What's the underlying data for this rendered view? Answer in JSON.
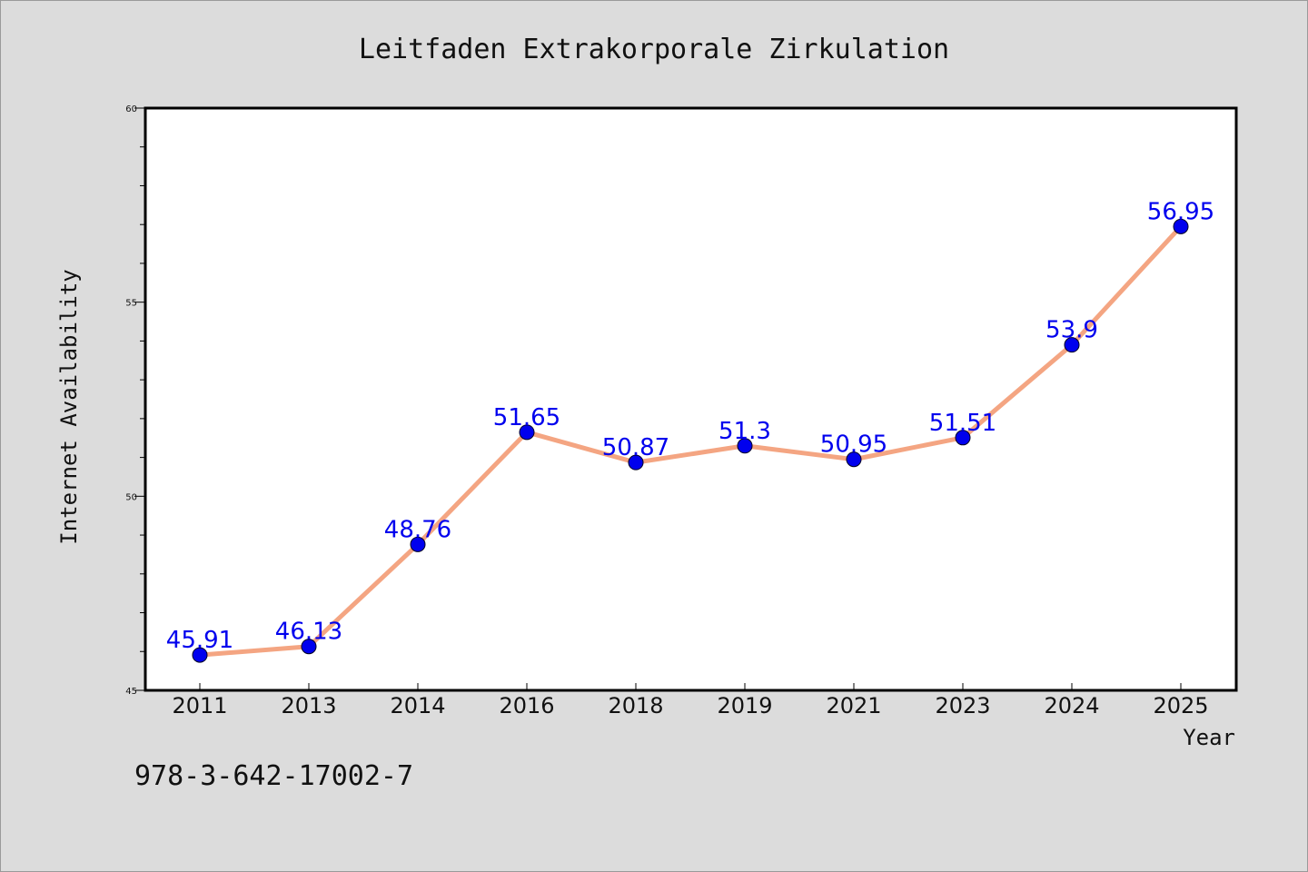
{
  "chart_data": {
    "type": "line",
    "title": "Leitfaden Extrakorporale Zirkulation",
    "xlabel": "Year",
    "ylabel": "Internet Availability",
    "categories": [
      "2011",
      "2013",
      "2014",
      "2016",
      "2018",
      "2019",
      "2021",
      "2023",
      "2024",
      "2025"
    ],
    "series": [
      {
        "values": [
          45.91,
          46.13,
          48.76,
          51.65,
          50.87,
          51.3,
          50.95,
          51.51,
          53.9,
          56.95
        ],
        "labels": [
          "45.91",
          "46.13",
          "48.76",
          "51.65",
          "50.87",
          "51.3",
          "50.95",
          "51.51",
          "53.9",
          "56.95"
        ],
        "line_color": "#f4a582",
        "marker_color": "#0000ee"
      }
    ],
    "ylim": [
      45,
      60
    ],
    "yticks": [
      "45",
      "50",
      "55",
      "60"
    ],
    "grid": false,
    "legend": "none"
  },
  "footer": {
    "isbn": "978-3-642-17002-7"
  },
  "colors": {
    "background": "#dcdcdc",
    "plot_background": "#ffffff",
    "axis": "#000000"
  }
}
